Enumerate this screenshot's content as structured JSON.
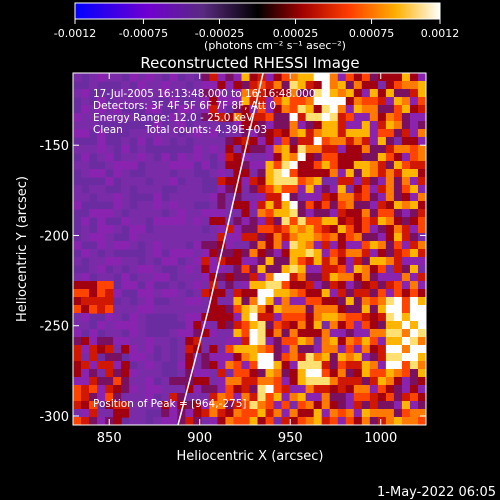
{
  "colorbar": {
    "ticks": [
      "-0.0012",
      "-0.00075",
      "-0.00025",
      "0.00025",
      "0.00075",
      "0.0012"
    ],
    "tick_values": [
      -0.0012,
      -0.00075,
      -0.00025,
      0.00025,
      0.00075,
      0.0012
    ],
    "range": [
      -0.0012,
      0.0012
    ],
    "unit_label": "(photons cm⁻² s⁻¹ asec⁻²)",
    "colors": [
      "#0000ff",
      "#7a00d0",
      "#5a2a80",
      "#000000",
      "#b00000",
      "#ff3c00",
      "#ffb000",
      "#ffffff"
    ]
  },
  "chart_data": {
    "type": "heatmap",
    "title": "Reconstructed RHESSI Image",
    "xlabel": "Heliocentric X (arcsec)",
    "ylabel": "Heliocentric Y (arcsec)",
    "xlim": [
      830,
      1025
    ],
    "ylim": [
      -305,
      -110
    ],
    "x_ticks": [
      850,
      900,
      950,
      1000
    ],
    "y_ticks": [
      -150,
      -200,
      -250,
      -300
    ],
    "x_tick_labels": [
      "850",
      "900",
      "950",
      "1000"
    ],
    "y_tick_labels": [
      "-150",
      "-200",
      "-250",
      "-300"
    ],
    "limb_curve": {
      "x": [
        888,
        905,
        920,
        935
      ],
      "y": [
        -305,
        -240,
        -175,
        -110
      ]
    },
    "peak": {
      "x": 964,
      "y": -275
    },
    "annotations": {
      "time": "17-Jul-2005 16:13:48.000 to 16:16:48.000",
      "detectors": "Detectors: 3F 4F 5F 6F 7F 8F, Att 0",
      "energy": "Energy Range: 12.0 - 25.0 keV",
      "method": "Clean",
      "counts": "Total counts: 4.39E+03",
      "peak_label": "Position of Peak = [964,-275]"
    },
    "grid": false
  },
  "footer": {
    "date": "1-May-2022 06:05"
  }
}
